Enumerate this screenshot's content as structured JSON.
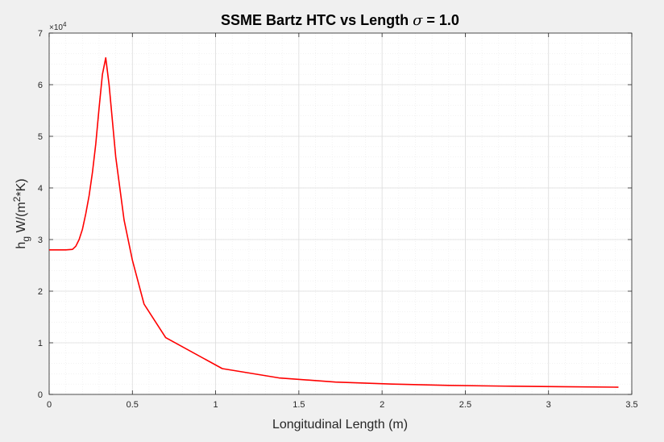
{
  "chart_data": {
    "type": "line",
    "title": "SSME Bartz HTC vs Length",
    "title_sigma": "σ",
    "title_value": "= 1.0",
    "xlabel": "Longitudinal Length (m)",
    "ylabel": {
      "h": "h",
      "h_sub": "g",
      "units_a": " W/(m",
      "units_sup": "2",
      "units_b": "*K)"
    },
    "y_exponent": {
      "base": "×10",
      "power": "4"
    },
    "xlim": [
      0,
      3.5
    ],
    "ylim": [
      0,
      70000
    ],
    "xticks": [
      0,
      0.5,
      1,
      1.5,
      2,
      2.5,
      3,
      3.5
    ],
    "xtick_labels": [
      "0",
      "0.5",
      "1",
      "1.5",
      "2",
      "2.5",
      "3",
      "3.5"
    ],
    "yticks": [
      0,
      10000,
      20000,
      30000,
      40000,
      50000,
      60000,
      70000
    ],
    "ytick_labels": [
      "0",
      "1",
      "2",
      "3",
      "4",
      "5",
      "6",
      "7"
    ],
    "grid": true,
    "minor_grid": true,
    "series": [
      {
        "color": "#ff0000",
        "x": [
          0,
          0.1,
          0.14,
          0.16,
          0.18,
          0.2,
          0.22,
          0.24,
          0.26,
          0.28,
          0.3,
          0.32,
          0.34,
          0.36,
          0.4,
          0.45,
          0.5,
          0.57,
          0.7,
          1.04,
          1.38,
          1.72,
          2.06,
          2.4,
          2.74,
          3.08,
          3.42
        ],
        "y": [
          28000,
          28000,
          28100,
          28700,
          30000,
          32000,
          35000,
          38500,
          43000,
          48500,
          55500,
          62000,
          65200,
          60000,
          46000,
          33800,
          26000,
          17500,
          11000,
          5000,
          3200,
          2400,
          2000,
          1750,
          1600,
          1500,
          1400
        ]
      }
    ],
    "colors": {
      "figure_background": "#f0f0f0",
      "axes_background": "#ffffff",
      "major_grid": "#dcdcdc",
      "minor_grid": "#eeeeee",
      "axis": "#262626",
      "series": "#ff0000"
    }
  }
}
